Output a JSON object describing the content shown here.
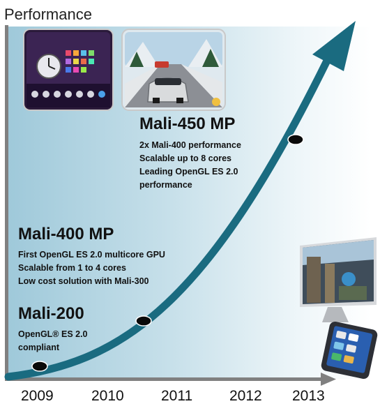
{
  "axis": {
    "y_title": "Performance",
    "x_ticks": [
      "2009",
      "2010",
      "2011",
      "2012",
      "2013"
    ]
  },
  "milestones": [
    {
      "heading": "Mali-200",
      "lines": [
        "OpenGL® ES 2.0",
        "compliant"
      ]
    },
    {
      "heading": "Mali-400 MP",
      "lines": [
        "First OpenGL ES 2.0 multicore GPU",
        "Scalable  from 1 to 4 cores",
        "Low cost solution with Mali-300"
      ]
    },
    {
      "heading": "Mali-450 MP",
      "lines": [
        "2x Mali-400 performance",
        "Scalable up to 8 cores",
        "Leading OpenGL ES 2.0",
        "performance"
      ]
    }
  ],
  "images": {
    "tablet_screen": "tablet-screenshot",
    "racing_game": "racing-game-screenshot",
    "tv": "television-image",
    "phone": "smartphone-image"
  },
  "colors": {
    "curve": "#1a6b80",
    "axis": "#808080",
    "marker": "#0a0a0a"
  }
}
